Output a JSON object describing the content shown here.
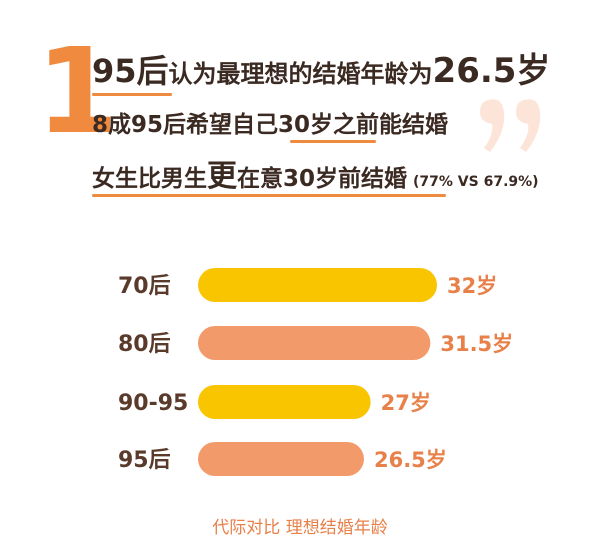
{
  "header": {
    "number": "1",
    "lines": [
      {
        "parts": [
          "95后",
          "认为最理想的结婚年龄为",
          "26.5岁"
        ]
      },
      {
        "parts": [
          "8成95后希望自己",
          "30岁之前",
          "能结婚"
        ]
      },
      {
        "parts": [
          "女生比男生",
          "更",
          "在意30岁前结婚",
          "(77% VS 67.9%)"
        ]
      }
    ]
  },
  "chart_data": {
    "type": "bar",
    "orientation": "horizontal",
    "categories": [
      "70后",
      "80后",
      "90-95",
      "95后"
    ],
    "values": [
      32,
      31.5,
      27,
      26.5
    ],
    "value_labels": [
      "32岁",
      "31.5岁",
      "27岁",
      "26.5岁"
    ],
    "colors": [
      "#f9c400",
      "#f39a6b",
      "#f9c400",
      "#f39a6b"
    ],
    "xlim": [
      14,
      32
    ],
    "caption": "代际对比  理想结婚年龄"
  }
}
